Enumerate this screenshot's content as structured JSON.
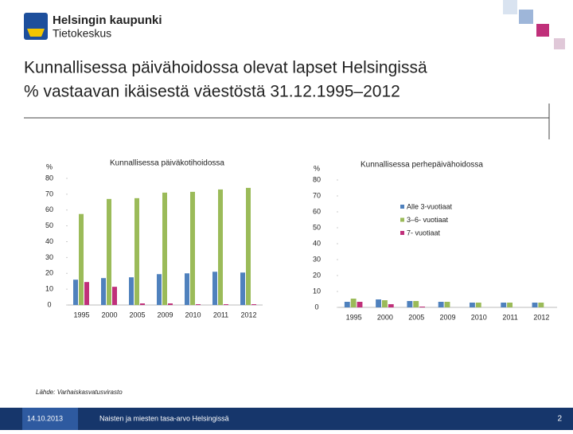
{
  "header": {
    "org": "Helsingin kaupunki",
    "unit": "Tietokeskus"
  },
  "title": [
    "Kunnallisessa päivähoidossa olevat lapset Helsingissä",
    "% vastaavan ikäisestä väestöstä 31.12.1995–2012"
  ],
  "chart_data": [
    {
      "type": "bar",
      "title": "Kunnallisessa päiväkotihoidossa",
      "y_label": "%",
      "categories": [
        "1995",
        "2000",
        "2005",
        "2009",
        "2010",
        "2011",
        "2012"
      ],
      "series": [
        {
          "name": "Alle 3-vuotiaat",
          "color": "#4f81bd",
          "values": [
            16,
            17,
            17.5,
            19.5,
            20,
            21,
            20.5
          ]
        },
        {
          "name": "3–6- vuotiaat",
          "color": "#9bbb59",
          "values": [
            57.5,
            67,
            67.5,
            71,
            71.5,
            73,
            74
          ]
        },
        {
          "name": "7- vuotiaat",
          "color": "#c0307a",
          "values": [
            14.5,
            11.5,
            1,
            1,
            0.5,
            0.5,
            0.5
          ]
        }
      ],
      "ylim": [
        0,
        80
      ],
      "yticks": [
        0,
        10,
        20,
        30,
        40,
        50,
        60,
        70,
        80
      ],
      "legend": false
    },
    {
      "type": "bar",
      "title": "Kunnallisessa perhepäivähoidossa",
      "y_label": "%",
      "categories": [
        "1995",
        "2000",
        "2005",
        "2009",
        "2010",
        "2011",
        "2012"
      ],
      "series": [
        {
          "name": "Alle 3-vuotiaat",
          "color": "#4f81bd",
          "values": [
            3.5,
            5,
            4,
            3.5,
            3,
            3,
            3
          ]
        },
        {
          "name": "3–6- vuotiaat",
          "color": "#9bbb59",
          "values": [
            5.5,
            4.5,
            4,
            3.5,
            3,
            3,
            3
          ]
        },
        {
          "name": "7- vuotiaat",
          "color": "#c0307a",
          "values": [
            3.5,
            2,
            0.5,
            0,
            0,
            0,
            0
          ]
        }
      ],
      "ylim": [
        0,
        80
      ],
      "yticks": [
        0,
        10,
        20,
        30,
        40,
        50,
        60,
        70,
        80
      ],
      "legend": true
    }
  ],
  "source": "Lähde: Varhaiskasvatusvirasto",
  "footer": {
    "date": "14.10.2013",
    "text": "Naisten ja miesten tasa-arvo Helsingissä",
    "page": "2"
  }
}
